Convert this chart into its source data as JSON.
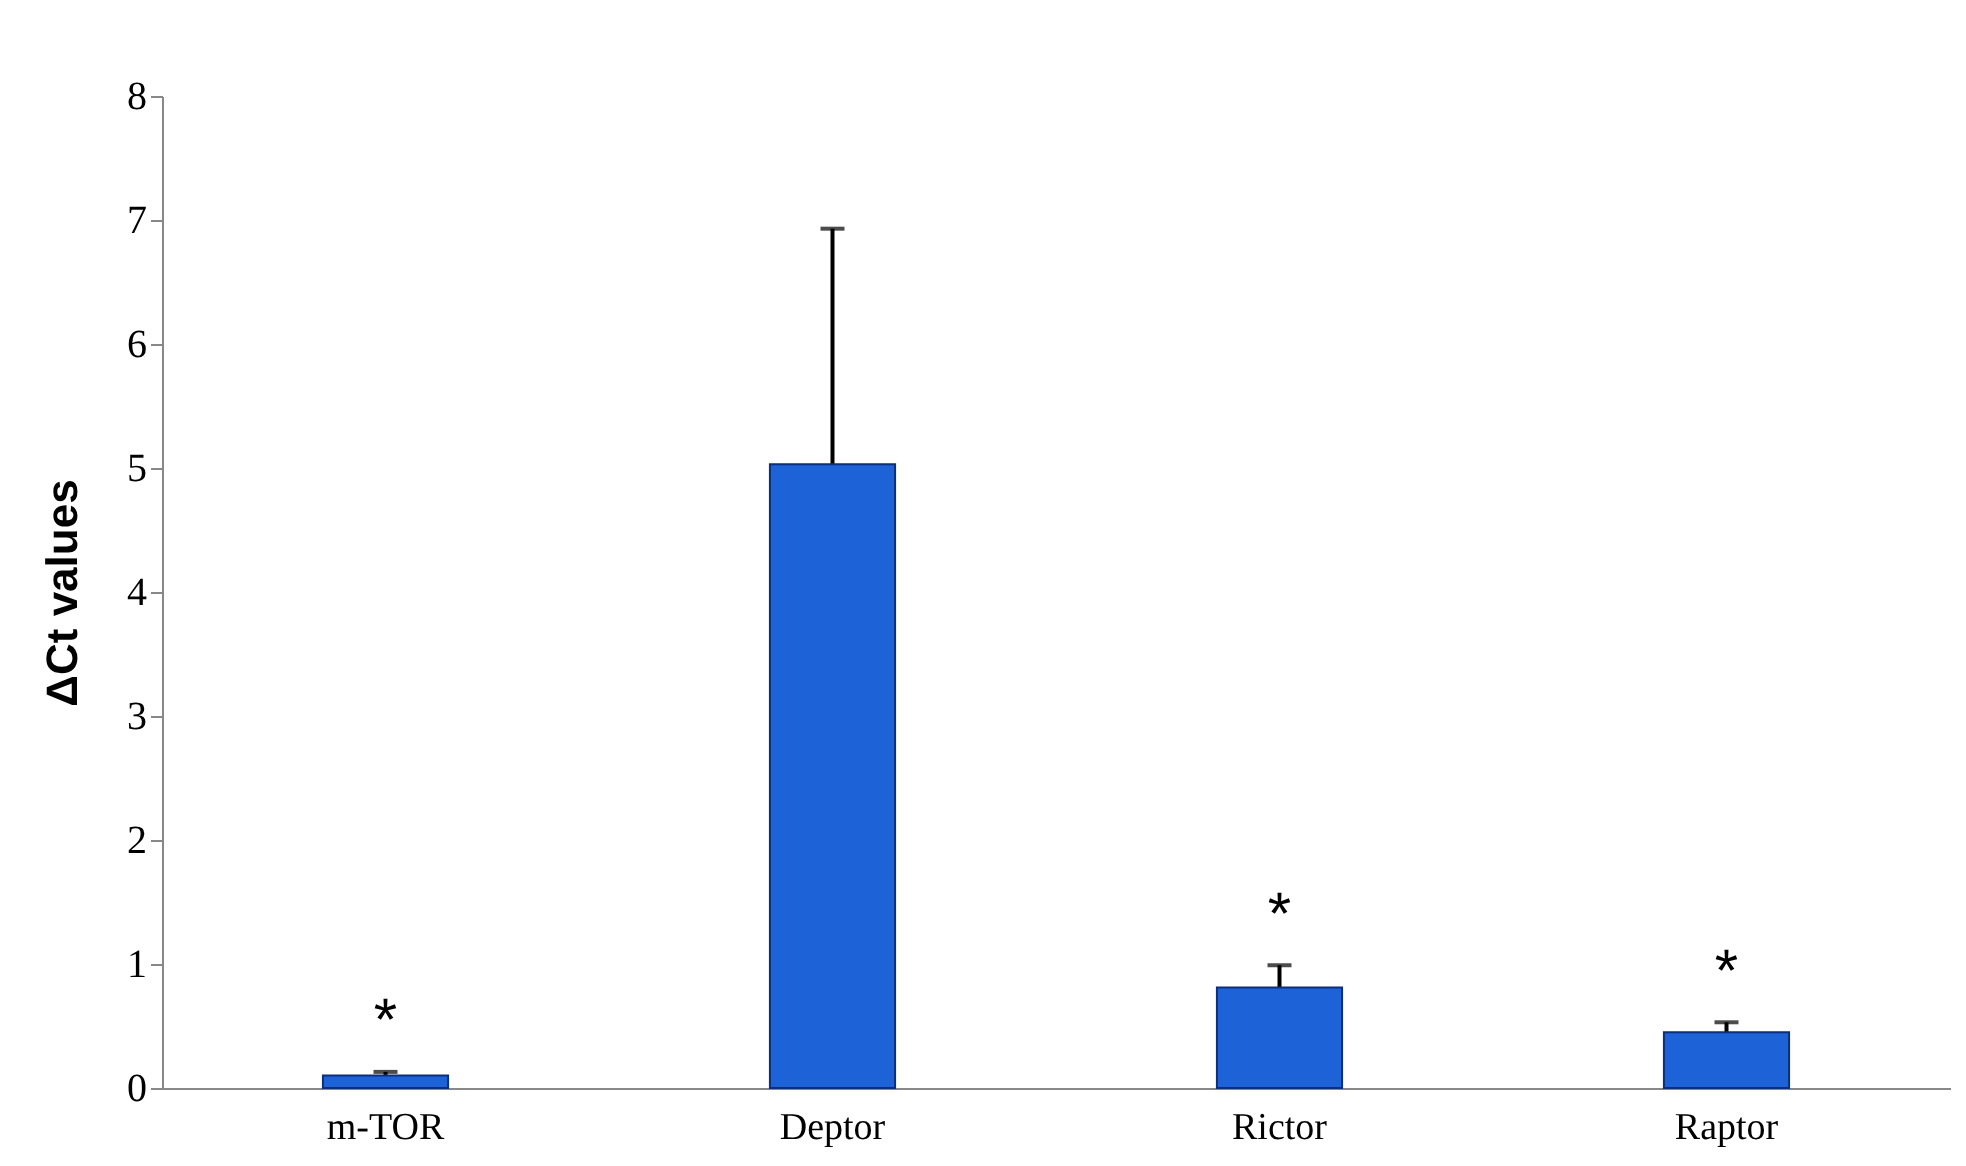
{
  "chart_data": {
    "type": "bar",
    "ylabel": "ΔCt   values",
    "categories": [
      "m-TOR",
      "Deptor",
      "Rictor",
      "Raptor"
    ],
    "values": [
      0.1,
      5.03,
      0.81,
      0.45
    ],
    "errors": [
      0.03,
      1.9,
      0.18,
      0.08
    ],
    "color": "#1e62d8",
    "ylim": [
      0,
      8
    ],
    "yticks": [
      0,
      1,
      2,
      3,
      4,
      5,
      6,
      7,
      8
    ],
    "grid": false,
    "annotations": [
      "*",
      "*",
      "*"
    ]
  }
}
